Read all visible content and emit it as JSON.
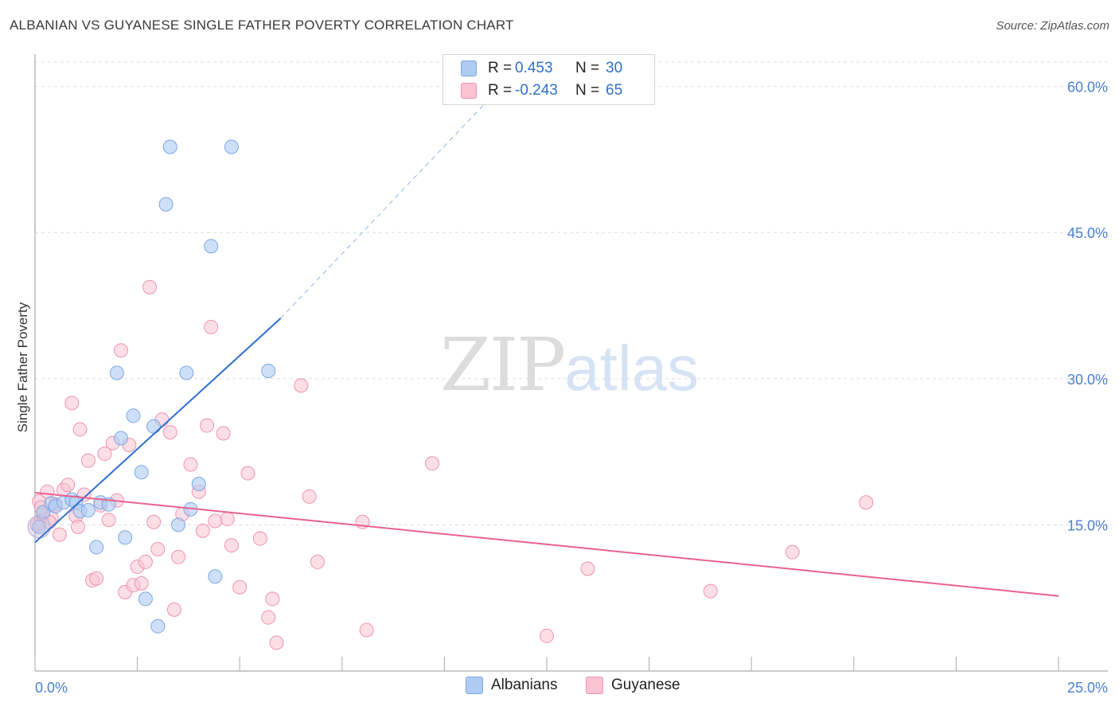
{
  "title": "ALBANIAN VS GUYANESE SINGLE FATHER POVERTY CORRELATION CHART",
  "source": "Source: ZipAtlas.com",
  "watermark": {
    "zip": "ZIP",
    "atlas": "atlas"
  },
  "legend": {
    "rows": [
      {
        "r_label": "R =",
        "r_value": "0.453",
        "n_label": "N =",
        "n_value": "30",
        "color": "#aecbf2",
        "border": "#7aa7e0"
      },
      {
        "r_label": "R =",
        "r_value": "-0.243",
        "n_label": "N =",
        "n_value": "65",
        "color": "#f9c3d3",
        "border": "#ee93b0"
      }
    ]
  },
  "bottom_legend": [
    {
      "label": "Albanians",
      "color": "#aecbf2",
      "border": "#7aa7e0"
    },
    {
      "label": "Guyanese",
      "color": "#f9c3d3",
      "border": "#ee93b0"
    }
  ],
  "chart_data": {
    "type": "scatter",
    "title": "ALBANIAN VS GUYANESE SINGLE FATHER POVERTY CORRELATION CHART",
    "xlabel": "",
    "ylabel": "Single Father Poverty",
    "xlim": [
      0,
      25
    ],
    "ylim": [
      0,
      62.5
    ],
    "x_tick_labels": [
      "0.0%",
      "25.0%"
    ],
    "y_ticks": [
      15,
      30,
      45,
      60
    ],
    "y_tick_labels": [
      "15.0%",
      "30.0%",
      "45.0%",
      "60.0%"
    ],
    "grid": "horizontal-dashed",
    "colors": {
      "albanians": "#2f6fd0",
      "guyanese": "#e8628f"
    },
    "series": [
      {
        "name": "Albanians",
        "points": [
          [
            0.1,
            14.8
          ],
          [
            0.2,
            16.3
          ],
          [
            0.4,
            17.2
          ],
          [
            0.5,
            16.9
          ],
          [
            0.7,
            17.3
          ],
          [
            0.9,
            17.6
          ],
          [
            1.0,
            17.3
          ],
          [
            1.1,
            16.4
          ],
          [
            1.3,
            16.5
          ],
          [
            1.5,
            12.7
          ],
          [
            1.6,
            17.3
          ],
          [
            1.8,
            17.1
          ],
          [
            2.0,
            30.6
          ],
          [
            2.1,
            23.9
          ],
          [
            2.2,
            13.7
          ],
          [
            2.4,
            26.2
          ],
          [
            2.6,
            20.4
          ],
          [
            2.7,
            7.4
          ],
          [
            2.9,
            25.1
          ],
          [
            3.0,
            4.6
          ],
          [
            3.2,
            47.9
          ],
          [
            3.3,
            53.8
          ],
          [
            3.5,
            15.0
          ],
          [
            3.7,
            30.6
          ],
          [
            3.8,
            16.6
          ],
          [
            4.0,
            19.2
          ],
          [
            4.3,
            43.6
          ],
          [
            4.4,
            9.7
          ],
          [
            4.8,
            53.8
          ],
          [
            5.7,
            30.8
          ]
        ],
        "trend": {
          "x": [
            0,
            6.0
          ],
          "y": [
            13.2,
            36.2
          ],
          "extension": {
            "x": [
              6.0,
              11.5
            ],
            "y": [
              36.2,
              60.5
            ]
          }
        }
      },
      {
        "name": "Guyanese",
        "points": [
          [
            0.05,
            15.0
          ],
          [
            0.1,
            17.4
          ],
          [
            0.2,
            16.0
          ],
          [
            0.3,
            18.4
          ],
          [
            0.4,
            15.7
          ],
          [
            0.5,
            17.1
          ],
          [
            0.6,
            14.0
          ],
          [
            0.7,
            18.6
          ],
          [
            0.8,
            19.1
          ],
          [
            0.9,
            27.5
          ],
          [
            1.0,
            15.9
          ],
          [
            1.1,
            24.8
          ],
          [
            1.2,
            18.1
          ],
          [
            1.3,
            21.6
          ],
          [
            1.4,
            9.3
          ],
          [
            1.5,
            9.5
          ],
          [
            1.6,
            17.0
          ],
          [
            1.7,
            22.3
          ],
          [
            1.8,
            15.5
          ],
          [
            1.9,
            23.4
          ],
          [
            2.0,
            17.5
          ],
          [
            2.1,
            32.9
          ],
          [
            2.2,
            8.1
          ],
          [
            2.3,
            23.2
          ],
          [
            2.4,
            8.8
          ],
          [
            2.5,
            10.7
          ],
          [
            2.6,
            9.0
          ],
          [
            2.7,
            11.2
          ],
          [
            2.8,
            39.4
          ],
          [
            2.9,
            15.3
          ],
          [
            3.0,
            12.5
          ],
          [
            3.1,
            25.8
          ],
          [
            3.3,
            24.5
          ],
          [
            3.4,
            6.3
          ],
          [
            3.5,
            11.7
          ],
          [
            3.6,
            16.1
          ],
          [
            3.8,
            21.2
          ],
          [
            4.0,
            18.4
          ],
          [
            4.1,
            14.4
          ],
          [
            4.2,
            25.2
          ],
          [
            4.3,
            35.3
          ],
          [
            4.4,
            15.4
          ],
          [
            4.6,
            24.4
          ],
          [
            4.7,
            15.6
          ],
          [
            4.8,
            12.9
          ],
          [
            5.0,
            8.6
          ],
          [
            5.2,
            20.3
          ],
          [
            5.5,
            13.6
          ],
          [
            5.7,
            5.5
          ],
          [
            5.8,
            7.4
          ],
          [
            5.9,
            2.9
          ],
          [
            6.5,
            29.3
          ],
          [
            6.7,
            17.9
          ],
          [
            6.9,
            11.2
          ],
          [
            8.0,
            15.3
          ],
          [
            8.1,
            4.2
          ],
          [
            9.7,
            21.3
          ],
          [
            12.5,
            3.6
          ],
          [
            13.5,
            10.5
          ],
          [
            16.5,
            8.2
          ],
          [
            18.5,
            12.2
          ],
          [
            20.3,
            17.3
          ],
          [
            0.15,
            16.8
          ],
          [
            0.35,
            15.3
          ],
          [
            1.05,
            14.8
          ]
        ],
        "trend": {
          "x": [
            0,
            25
          ],
          "y": [
            18.3,
            7.7
          ]
        }
      }
    ]
  }
}
